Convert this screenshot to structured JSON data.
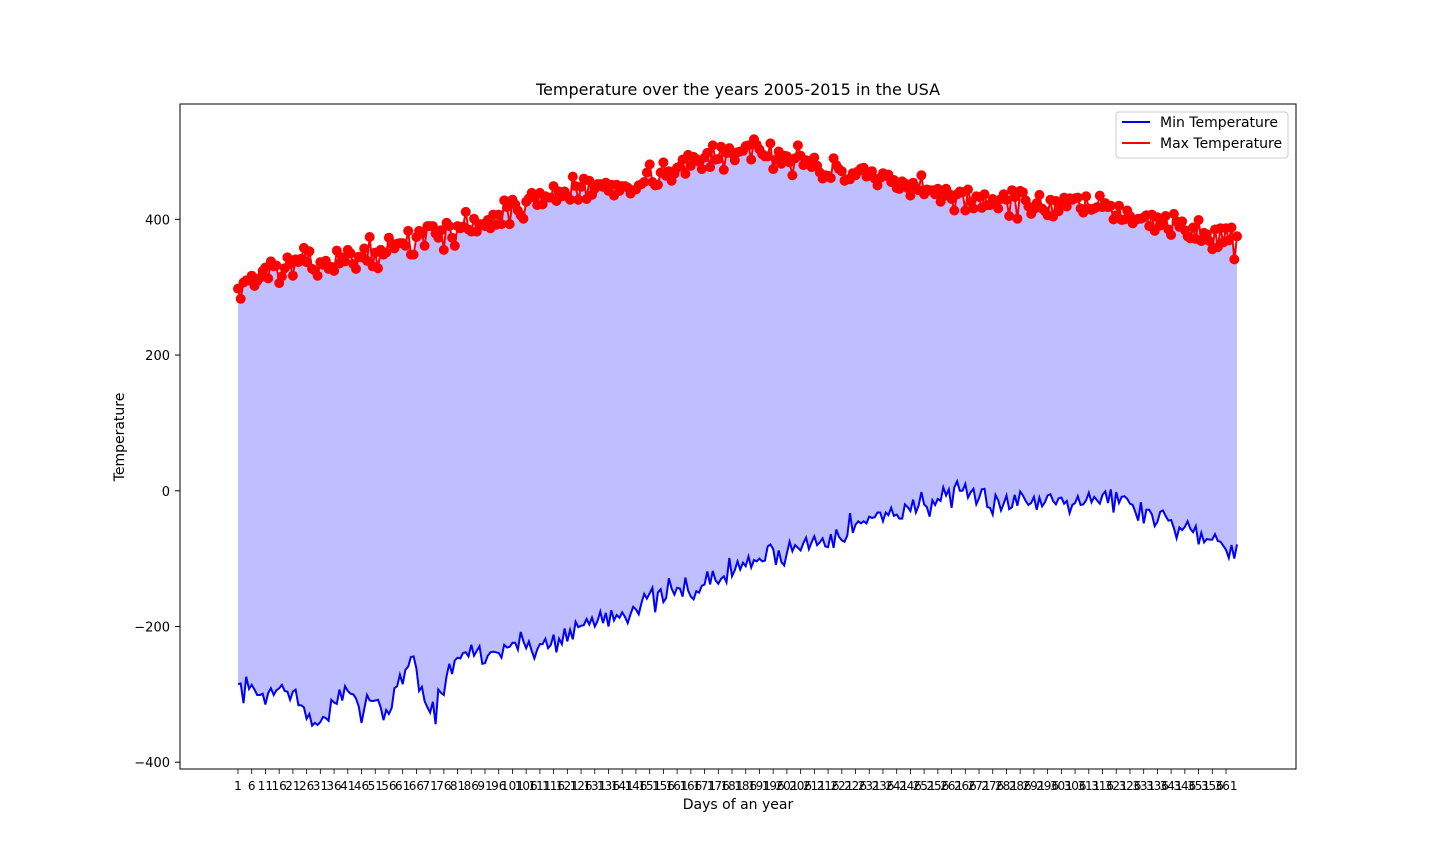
{
  "chart_data": {
    "type": "line",
    "title": "Temperature over the years 2005-2015 in the USA",
    "xlabel": "Days of an year",
    "ylabel": "Temperature",
    "xlim": [
      1,
      365
    ],
    "ylim": [
      -410,
      570
    ],
    "yticks": [
      -400,
      -200,
      0,
      200,
      400
    ],
    "xtick_step": 5,
    "legend_position": "upper right",
    "grid": false,
    "fill_between": {
      "color": "#bfbfff",
      "between": [
        "Min Temperature",
        "Max Temperature"
      ]
    },
    "series_keypoints": [
      {
        "name": "Min Temperature",
        "color": "#0000ff",
        "marker": "none",
        "keypoints": [
          [
            1,
            -290
          ],
          [
            10,
            -300
          ],
          [
            20,
            -290
          ],
          [
            25,
            -330
          ],
          [
            30,
            -345
          ],
          [
            35,
            -320
          ],
          [
            40,
            -300
          ],
          [
            45,
            -320
          ],
          [
            50,
            -300
          ],
          [
            55,
            -330
          ],
          [
            58,
            -300
          ],
          [
            60,
            -280
          ],
          [
            65,
            -240
          ],
          [
            68,
            -300
          ],
          [
            72,
            -330
          ],
          [
            78,
            -270
          ],
          [
            85,
            -235
          ],
          [
            92,
            -245
          ],
          [
            100,
            -225
          ],
          [
            110,
            -230
          ],
          [
            120,
            -215
          ],
          [
            130,
            -190
          ],
          [
            140,
            -180
          ],
          [
            150,
            -165
          ],
          [
            160,
            -150
          ],
          [
            170,
            -140
          ],
          [
            180,
            -120
          ],
          [
            190,
            -100
          ],
          [
            200,
            -90
          ],
          [
            210,
            -75
          ],
          [
            220,
            -60
          ],
          [
            230,
            -45
          ],
          [
            240,
            -30
          ],
          [
            250,
            -20
          ],
          [
            260,
            -10
          ],
          [
            270,
            -10
          ],
          [
            280,
            -15
          ],
          [
            290,
            -15
          ],
          [
            300,
            -10
          ],
          [
            310,
            -10
          ],
          [
            320,
            -10
          ],
          [
            330,
            -30
          ],
          [
            340,
            -45
          ],
          [
            350,
            -60
          ],
          [
            355,
            -65
          ],
          [
            360,
            -80
          ]
        ],
        "noise": 10,
        "seed": 7
      },
      {
        "name": "Max Temperature",
        "color": "#ff0000",
        "marker": "circle",
        "keypoints": [
          [
            1,
            300
          ],
          [
            10,
            320
          ],
          [
            20,
            330
          ],
          [
            30,
            335
          ],
          [
            40,
            340
          ],
          [
            50,
            350
          ],
          [
            60,
            360
          ],
          [
            70,
            375
          ],
          [
            80,
            385
          ],
          [
            90,
            395
          ],
          [
            100,
            410
          ],
          [
            110,
            430
          ],
          [
            120,
            440
          ],
          [
            130,
            445
          ],
          [
            140,
            450
          ],
          [
            150,
            460
          ],
          [
            160,
            475
          ],
          [
            170,
            485
          ],
          [
            180,
            495
          ],
          [
            190,
            505
          ],
          [
            200,
            495
          ],
          [
            210,
            480
          ],
          [
            220,
            470
          ],
          [
            230,
            460
          ],
          [
            240,
            450
          ],
          [
            250,
            440
          ],
          [
            260,
            435
          ],
          [
            270,
            430
          ],
          [
            280,
            425
          ],
          [
            290,
            420
          ],
          [
            300,
            420
          ],
          [
            310,
            415
          ],
          [
            320,
            410
          ],
          [
            330,
            405
          ],
          [
            340,
            395
          ],
          [
            350,
            380
          ],
          [
            360,
            370
          ]
        ],
        "noise": 10,
        "seed": 13
      }
    ]
  },
  "legend": {
    "items": [
      {
        "label": "Min Temperature",
        "color": "#0000ff"
      },
      {
        "label": "Max Temperature",
        "color": "#ff0000"
      }
    ]
  }
}
